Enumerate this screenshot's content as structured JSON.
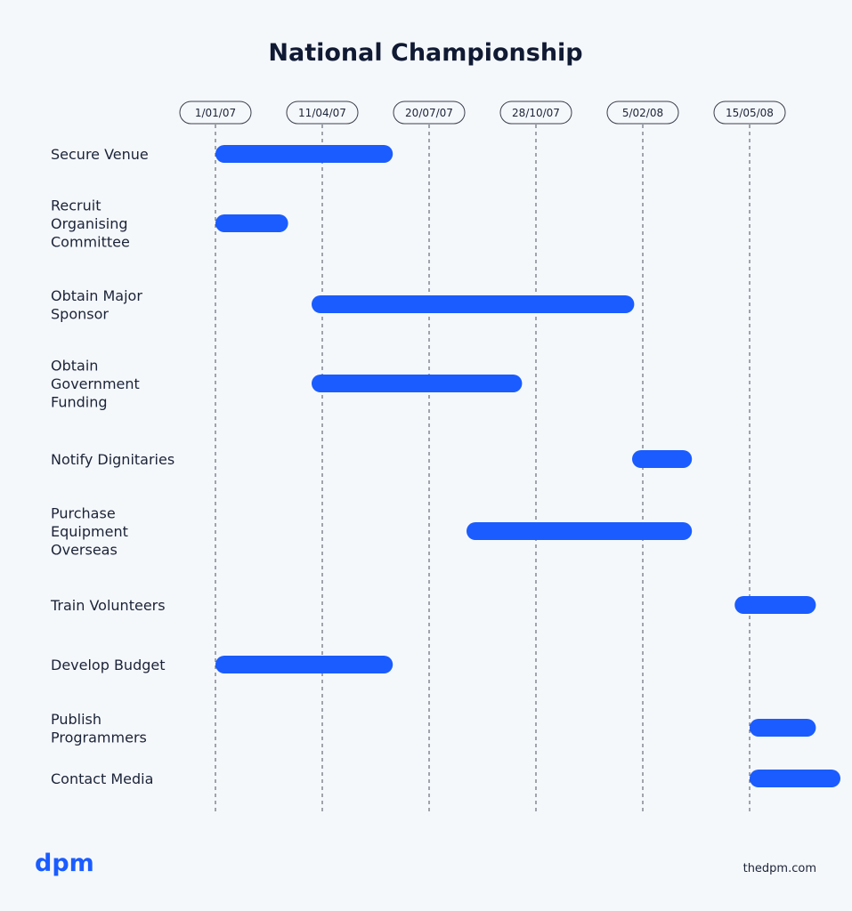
{
  "chart_data": {
    "type": "gantt",
    "title": "National Championship",
    "tick_labels": [
      "1/01/07",
      "11/04/07",
      "20/07/07",
      "28/10/07",
      "5/02/08",
      "15/05/08"
    ],
    "tick_dates": [
      "2007-01-01",
      "2007-04-11",
      "2007-07-20",
      "2007-10-28",
      "2008-02-05",
      "2008-05-15"
    ],
    "tasks": [
      {
        "name": "Secure Venue",
        "label_lines": [
          "Secure Venue"
        ],
        "start": "2007-01-01",
        "end": "2007-06-16"
      },
      {
        "name": "Recruit Organising Committee",
        "label_lines": [
          "Recruit",
          "Organising",
          "Committee"
        ],
        "start": "2007-01-01",
        "end": "2007-03-10"
      },
      {
        "name": "Obtain Major Sponsor",
        "label_lines": [
          "Obtain Major",
          "Sponsor"
        ],
        "start": "2007-04-01",
        "end": "2008-01-28"
      },
      {
        "name": "Obtain Government Funding",
        "label_lines": [
          "Obtain",
          "Government",
          "Funding"
        ],
        "start": "2007-04-01",
        "end": "2007-10-15"
      },
      {
        "name": "Notify Dignitaries",
        "label_lines": [
          "Notify Dignitaries"
        ],
        "start": "2008-01-26",
        "end": "2008-03-22"
      },
      {
        "name": "Purchase Equipment Overseas",
        "label_lines": [
          "Purchase",
          "Equipment",
          "Overseas"
        ],
        "start": "2007-08-24",
        "end": "2008-03-22"
      },
      {
        "name": "Train Volunteers",
        "label_lines": [
          "Train Volunteers"
        ],
        "start": "2008-05-01",
        "end": "2008-07-16"
      },
      {
        "name": "Develop Budget",
        "label_lines": [
          "Develop Budget"
        ],
        "start": "2007-01-01",
        "end": "2007-06-16"
      },
      {
        "name": "Publish Programmers",
        "label_lines": [
          "Publish",
          "Programmers"
        ],
        "start": "2008-05-15",
        "end": "2008-07-16"
      },
      {
        "name": "Contact Media",
        "label_lines": [
          "Contact Media"
        ],
        "start": "2008-05-15",
        "end": "2008-08-08"
      }
    ],
    "bar_color": "#1a5cff",
    "grid": "vertical-dashed"
  },
  "branding": {
    "logo_text": "dpm",
    "site": "thedpm.com"
  },
  "colors": {
    "background": "#f5f8fb",
    "accent": "#1a5cff",
    "text": "#1b2338",
    "title": "#101a33"
  }
}
